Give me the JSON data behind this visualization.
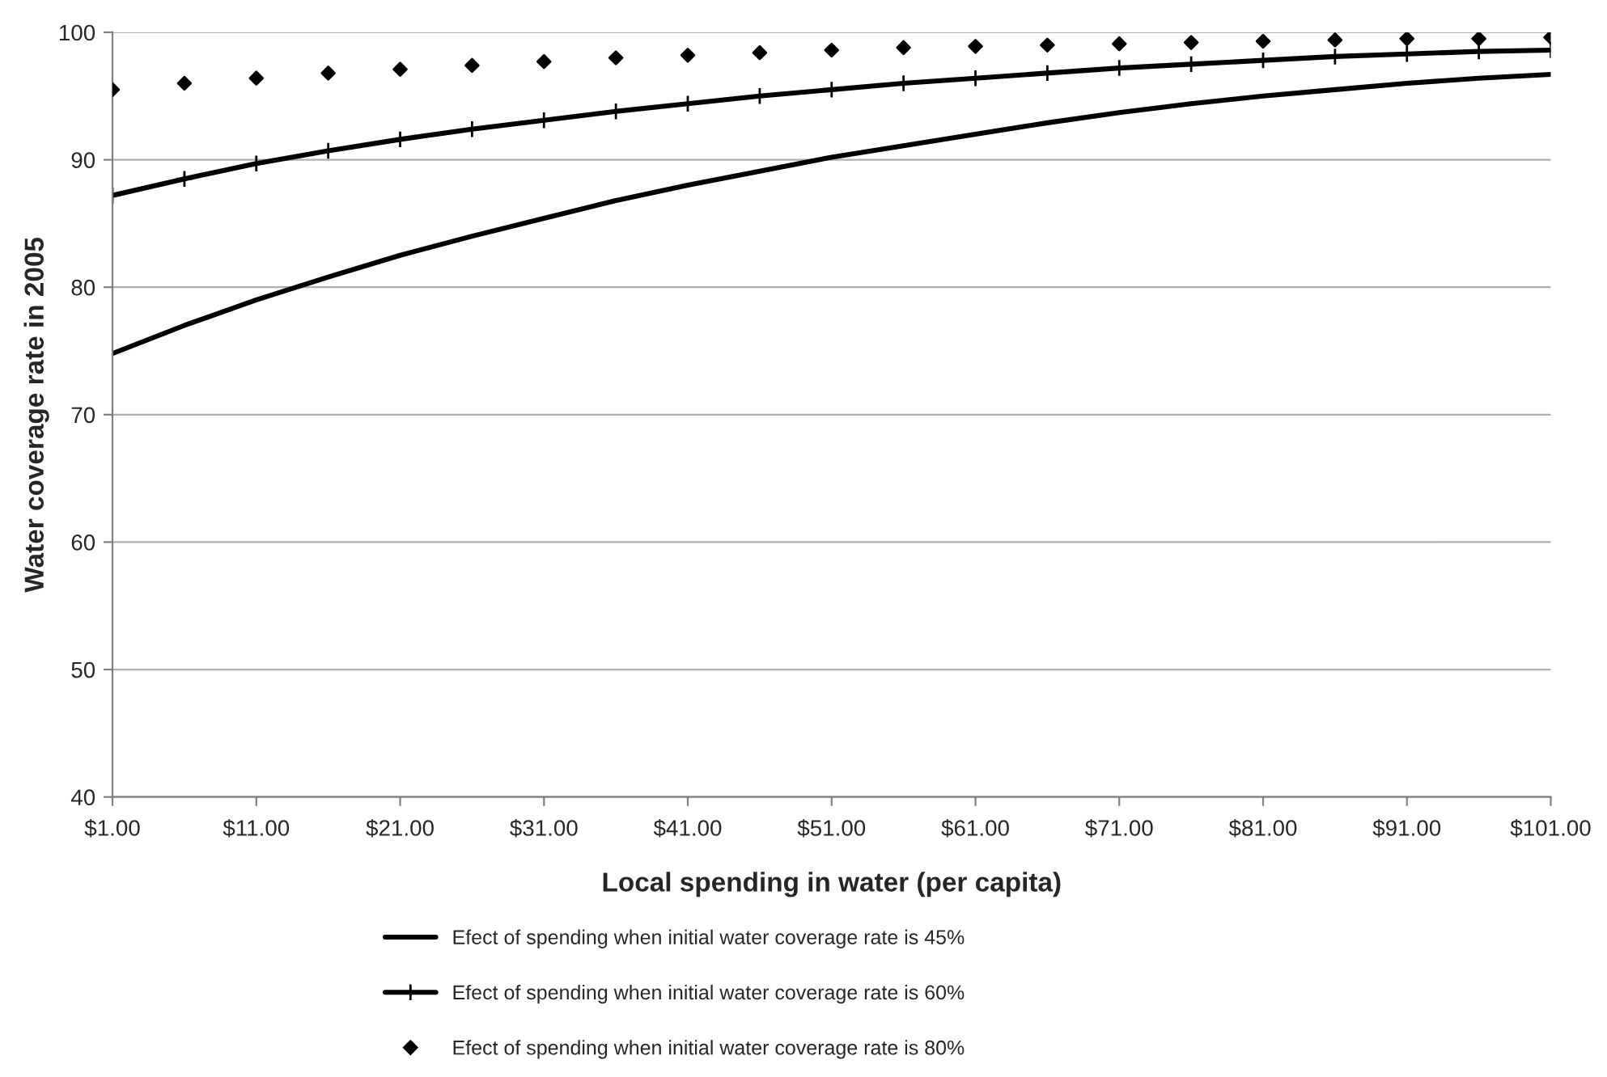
{
  "chart_data": {
    "type": "line",
    "xlabel": "Local spending in water (per capita)",
    "ylabel": "Water coverage rate in 2005",
    "x": [
      1,
      6,
      11,
      16,
      21,
      26,
      31,
      36,
      41,
      46,
      51,
      56,
      61,
      66,
      71,
      76,
      81,
      86,
      91,
      96,
      101
    ],
    "xlim": [
      1,
      101
    ],
    "xticks": [
      {
        "value": 1,
        "label": "$1.00"
      },
      {
        "value": 11,
        "label": "$11.00"
      },
      {
        "value": 21,
        "label": "$21.00"
      },
      {
        "value": 31,
        "label": "$31.00"
      },
      {
        "value": 41,
        "label": "$41.00"
      },
      {
        "value": 51,
        "label": "$51.00"
      },
      {
        "value": 61,
        "label": "$61.00"
      },
      {
        "value": 71,
        "label": "$71.00"
      },
      {
        "value": 81,
        "label": "$81.00"
      },
      {
        "value": 91,
        "label": "$91.00"
      },
      {
        "value": 101,
        "label": "$101.00"
      }
    ],
    "ylim": [
      40,
      100
    ],
    "yticks": [
      40,
      50,
      60,
      70,
      80,
      90,
      100
    ],
    "grid": "y",
    "legend": "bottom",
    "series": [
      {
        "name": "Efect of spending when initial water coverage rate is 45%",
        "color": "#000000",
        "marker": "none",
        "values": [
          74.8,
          77.0,
          79.0,
          80.8,
          82.5,
          84.0,
          85.4,
          86.8,
          88.0,
          89.1,
          90.2,
          91.1,
          92.0,
          92.9,
          93.7,
          94.4,
          95.0,
          95.5,
          96.0,
          96.4,
          96.7
        ]
      },
      {
        "name": "Efect of spending when initial water coverage rate is 60%",
        "color": "#000000",
        "marker": "cross",
        "values": [
          87.2,
          88.5,
          89.7,
          90.7,
          91.6,
          92.4,
          93.1,
          93.8,
          94.4,
          95.0,
          95.5,
          96.0,
          96.4,
          96.8,
          97.2,
          97.5,
          97.8,
          98.1,
          98.3,
          98.5,
          98.6
        ]
      },
      {
        "name": "Efect of spending when initial water coverage rate is 80%",
        "color": "#000000",
        "type": "scatter",
        "marker": "diamond",
        "values": [
          95.5,
          96.0,
          96.4,
          96.8,
          97.1,
          97.4,
          97.7,
          98.0,
          98.2,
          98.4,
          98.6,
          98.8,
          98.9,
          99.0,
          99.1,
          99.2,
          99.3,
          99.4,
          99.5,
          99.5,
          99.6
        ]
      }
    ]
  }
}
